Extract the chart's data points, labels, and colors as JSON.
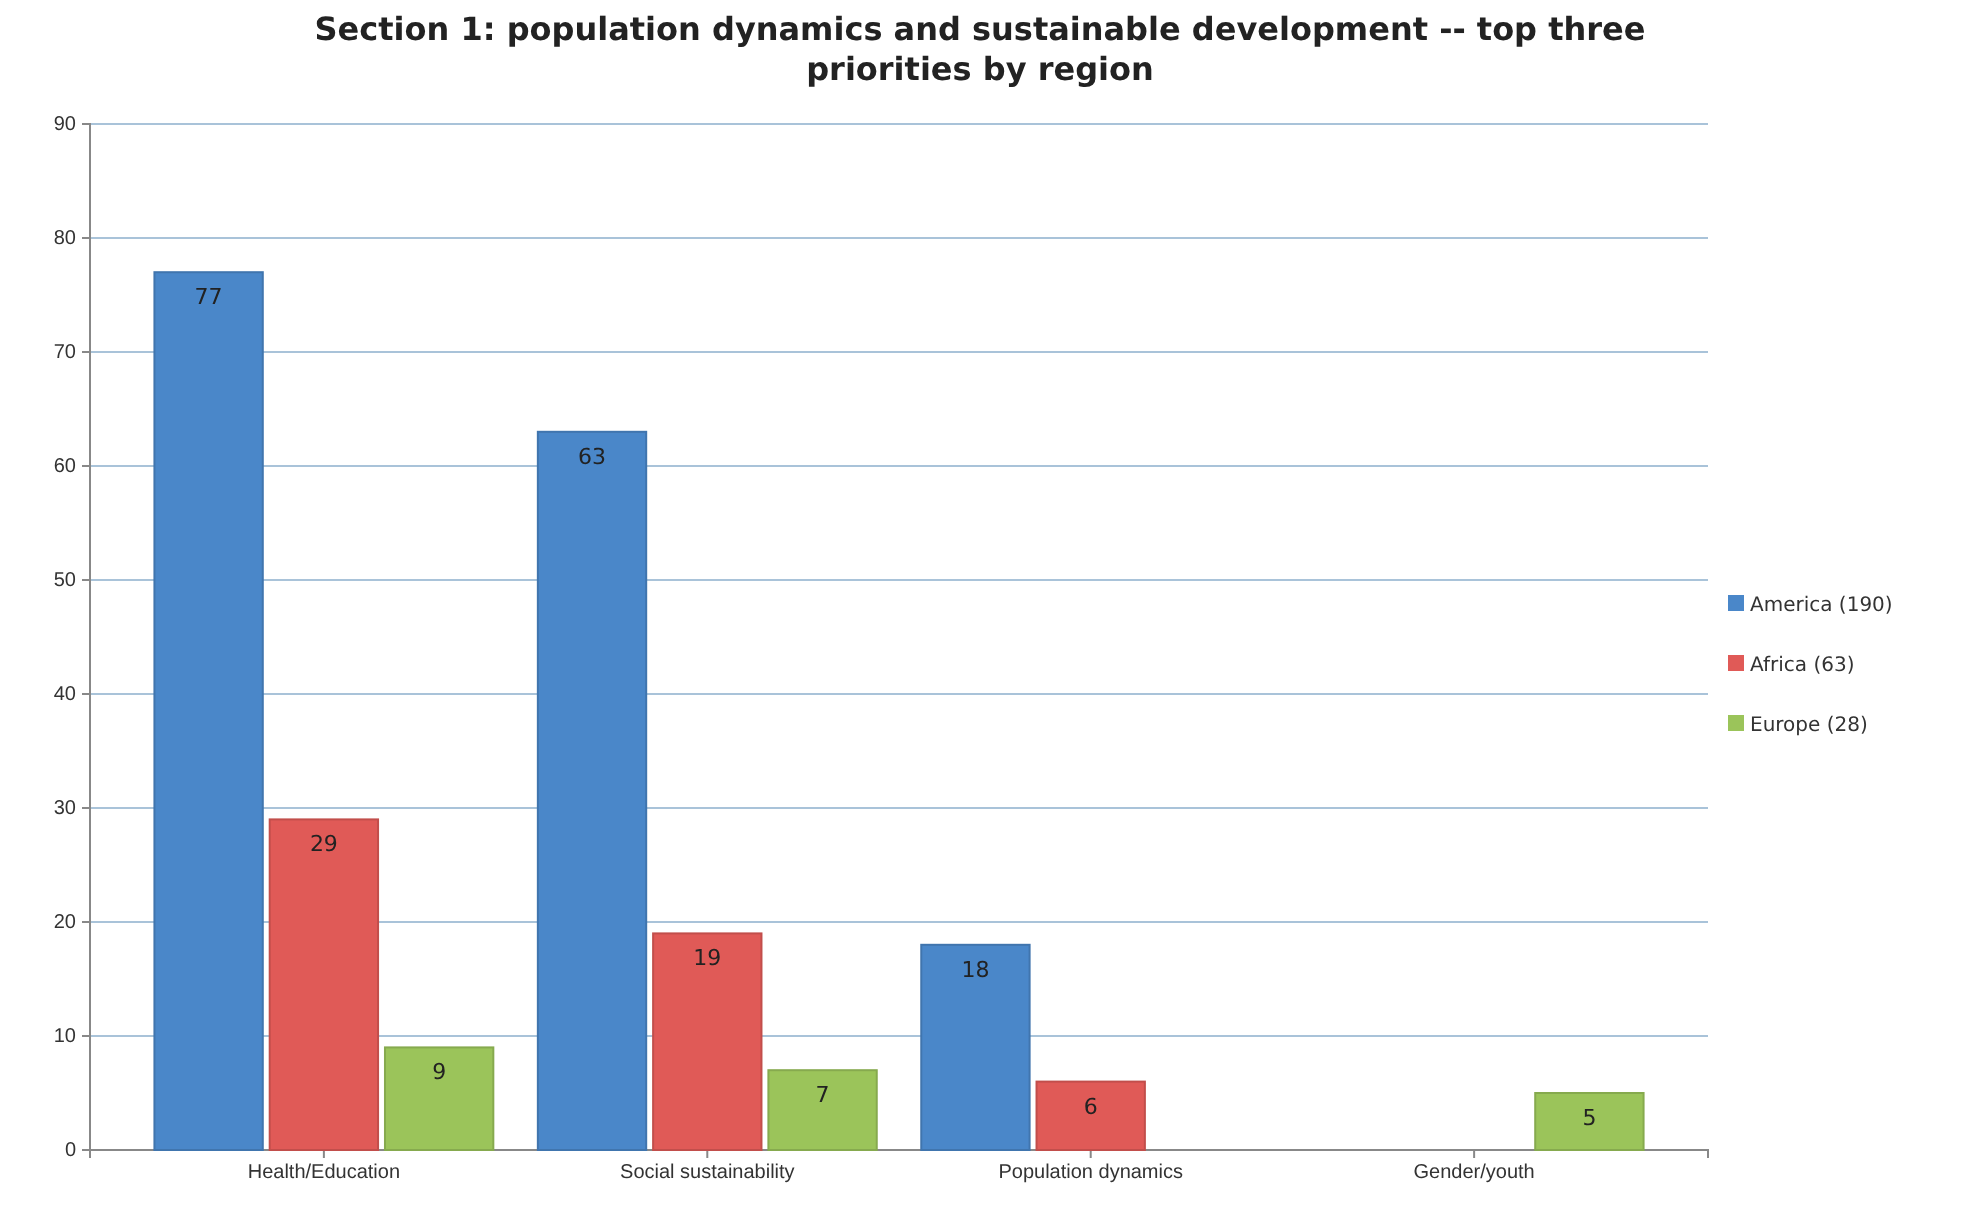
{
  "chart_data": {
    "type": "bar",
    "title": "Section 1: population dynamics and sustainable development -- top three priorities by region",
    "categories": [
      "Health/Education",
      "Social sustainability",
      "Population dynamics",
      "Gender/youth"
    ],
    "series": [
      {
        "name": "America (190)",
        "color": "#4a87c9",
        "values": [
          77,
          63,
          18,
          null
        ]
      },
      {
        "name": "Africa (63)",
        "color": "#e05a57",
        "values": [
          29,
          19,
          6,
          null
        ]
      },
      {
        "name": "Europe (28)",
        "color": "#9bc45a",
        "values": [
          9,
          7,
          null,
          5
        ]
      }
    ],
    "ylim": [
      0,
      90
    ],
    "yticks": [
      0,
      10,
      20,
      30,
      40,
      50,
      60,
      70,
      80,
      90
    ],
    "grid": "y",
    "legend": "right",
    "data_labels": true
  }
}
